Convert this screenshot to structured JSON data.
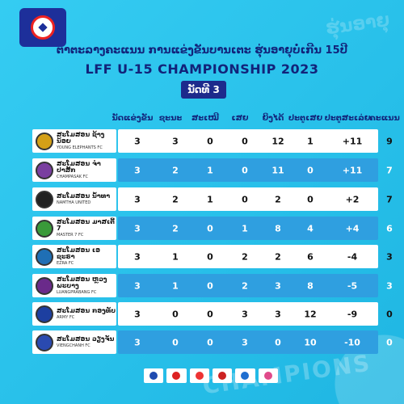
{
  "header": {
    "title_lao": "ຕາຕະລາງຄະແນນ ການແຂ່ງຂັນບານເຕະ ຮຸ່ນອາຍຸບໍ່ເກີນ 15ປີ",
    "title_en": "LFF U-15 CHAMPIONSHIP 2023",
    "matchday": "ນັດທີ 3"
  },
  "columns": [
    "ນັດແຂ່ງຂັນ",
    "ຊະນະ",
    "ສະເໝີ",
    "ເສຍ",
    "ຍິງໄດ້",
    "ປະຕູເສຍ",
    "ປະຕູສະເລ່ຍ",
    "ຄະແນນ"
  ],
  "teams": [
    {
      "name": "ສະໂມສອນ ຊ້າງນ້ອຍ",
      "sub": "YOUNG ELEPHANTS FC",
      "crest_color": "#d4a017",
      "stats": [
        "3",
        "3",
        "0",
        "0",
        "12",
        "1",
        "+11",
        "9"
      ]
    },
    {
      "name": "ສະໂມສອນ ຈຳປາສັກ",
      "sub": "CHAMPASAK FC",
      "crest_color": "#7a3fa0",
      "stats": [
        "3",
        "2",
        "1",
        "0",
        "11",
        "0",
        "+11",
        "7"
      ]
    },
    {
      "name": "ສະໂມສອນ ນ້ຳທາ",
      "sub": "NAMTHA UNITED",
      "crest_color": "#222222",
      "stats": [
        "3",
        "2",
        "1",
        "0",
        "2",
        "0",
        "+2",
        "7"
      ]
    },
    {
      "name": "ສະໂມສອນ ມາສເຕີ້ 7",
      "sub": "MASTER 7 FC",
      "crest_color": "#3a9a3a",
      "stats": [
        "3",
        "2",
        "0",
        "1",
        "8",
        "4",
        "+4",
        "6"
      ]
    },
    {
      "name": "ສະໂມສອນ ເອຊະຣາ",
      "sub": "EZRA FC",
      "crest_color": "#1f6fb5",
      "stats": [
        "3",
        "1",
        "0",
        "2",
        "2",
        "6",
        "-4",
        "3"
      ]
    },
    {
      "name": "ສະໂມສອນ ຫຼວງພະບາງ",
      "sub": "LUANGPRABANG FC",
      "crest_color": "#6a2a8a",
      "stats": [
        "3",
        "1",
        "0",
        "2",
        "3",
        "8",
        "-5",
        "3"
      ]
    },
    {
      "name": "ສະໂມສອນ ກອງທັບ",
      "sub": "ARMY FC",
      "crest_color": "#1d3fa0",
      "stats": [
        "3",
        "0",
        "0",
        "3",
        "3",
        "12",
        "-9",
        "0"
      ]
    },
    {
      "name": "ສະໂມສອນ ວຽງຈັນ",
      "sub": "VIENGCHANH FC",
      "crest_color": "#2a4ab0",
      "stats": [
        "3",
        "0",
        "0",
        "3",
        "0",
        "10",
        "-10",
        "0"
      ]
    }
  ],
  "decor": {
    "watermark_top": "ຮຸ່ນອາຍຸ",
    "watermark_bottom": "CHAMPIONS"
  },
  "sponsors": [
    "pepsi-logo",
    "sponsor-2-logo",
    "sponsor-3-logo",
    "sponsor-4-logo",
    "reusse-logo",
    "sponsor-6-logo"
  ]
}
